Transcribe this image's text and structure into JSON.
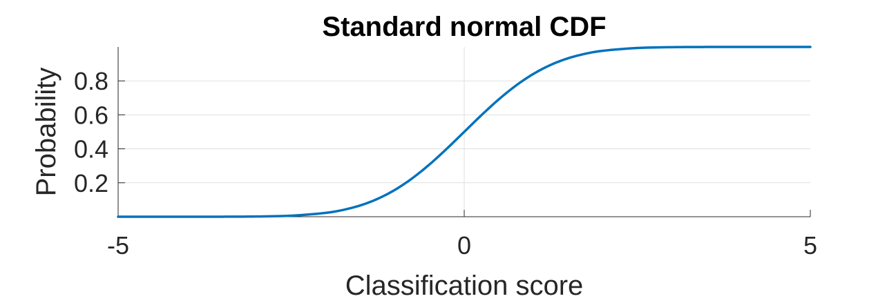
{
  "chart_data": {
    "type": "line",
    "title": "Standard normal CDF",
    "xlabel": "Classification score",
    "ylabel": "Probability",
    "xlim": [
      -5,
      5
    ],
    "ylim": [
      0,
      1
    ],
    "xticks": [
      -5,
      0,
      5
    ],
    "xtick_labels": [
      "-5",
      "0",
      "5"
    ],
    "yticks": [
      0.2,
      0.4,
      0.6,
      0.8
    ],
    "ytick_labels": [
      "0.2",
      "0.4",
      "0.6",
      "0.8"
    ],
    "grid": true,
    "series": [
      {
        "color": "#0072bd",
        "x": [
          -5,
          -4.5,
          -4,
          -3.5,
          -3,
          -2.5,
          -2,
          -1.75,
          -1.5,
          -1.25,
          -1,
          -0.75,
          -0.5,
          -0.25,
          0,
          0.25,
          0.5,
          0.75,
          1,
          1.25,
          1.5,
          1.75,
          2,
          2.5,
          3,
          3.5,
          4,
          4.5,
          5
        ],
        "y": [
          3e-07,
          3.4e-06,
          3.17e-05,
          0.0002326,
          0.0013499,
          0.0062097,
          0.0227501,
          0.0400592,
          0.0668072,
          0.1056498,
          0.1586553,
          0.2266274,
          0.3085375,
          0.4012937,
          0.5,
          0.5987063,
          0.6914625,
          0.7733726,
          0.8413447,
          0.8943502,
          0.9331928,
          0.9599408,
          0.9772499,
          0.9937903,
          0.9986501,
          0.9997674,
          0.9999683,
          0.9999966,
          0.9999997
        ]
      }
    ]
  }
}
